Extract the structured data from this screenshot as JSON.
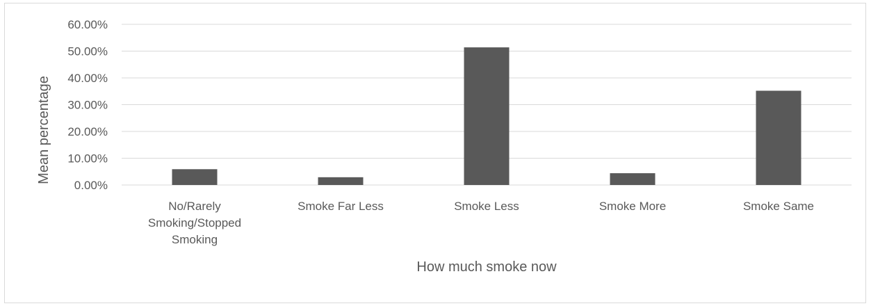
{
  "chart_data": {
    "type": "bar",
    "title": "",
    "xlabel": "How much smoke now",
    "ylabel": "Mean percentage",
    "categories": [
      [
        "No/Rarely",
        "Smoking/Stopped",
        "Smoking"
      ],
      [
        "Smoke Far Less"
      ],
      [
        "Smoke Less"
      ],
      [
        "Smoke More"
      ],
      [
        "Smoke Same"
      ]
    ],
    "values": [
      5.9,
      2.9,
      51.4,
      4.4,
      35.2
    ],
    "ylim": [
      0,
      60
    ],
    "yticks": [
      0,
      10,
      20,
      30,
      40,
      50,
      60
    ],
    "ytick_labels": [
      "0.00%",
      "10.00%",
      "20.00%",
      "30.00%",
      "40.00%",
      "50.00%",
      "60.00%"
    ],
    "grid": true,
    "legend": "none",
    "bar_color": "#595959",
    "grid_color": "#d9d9d9"
  }
}
